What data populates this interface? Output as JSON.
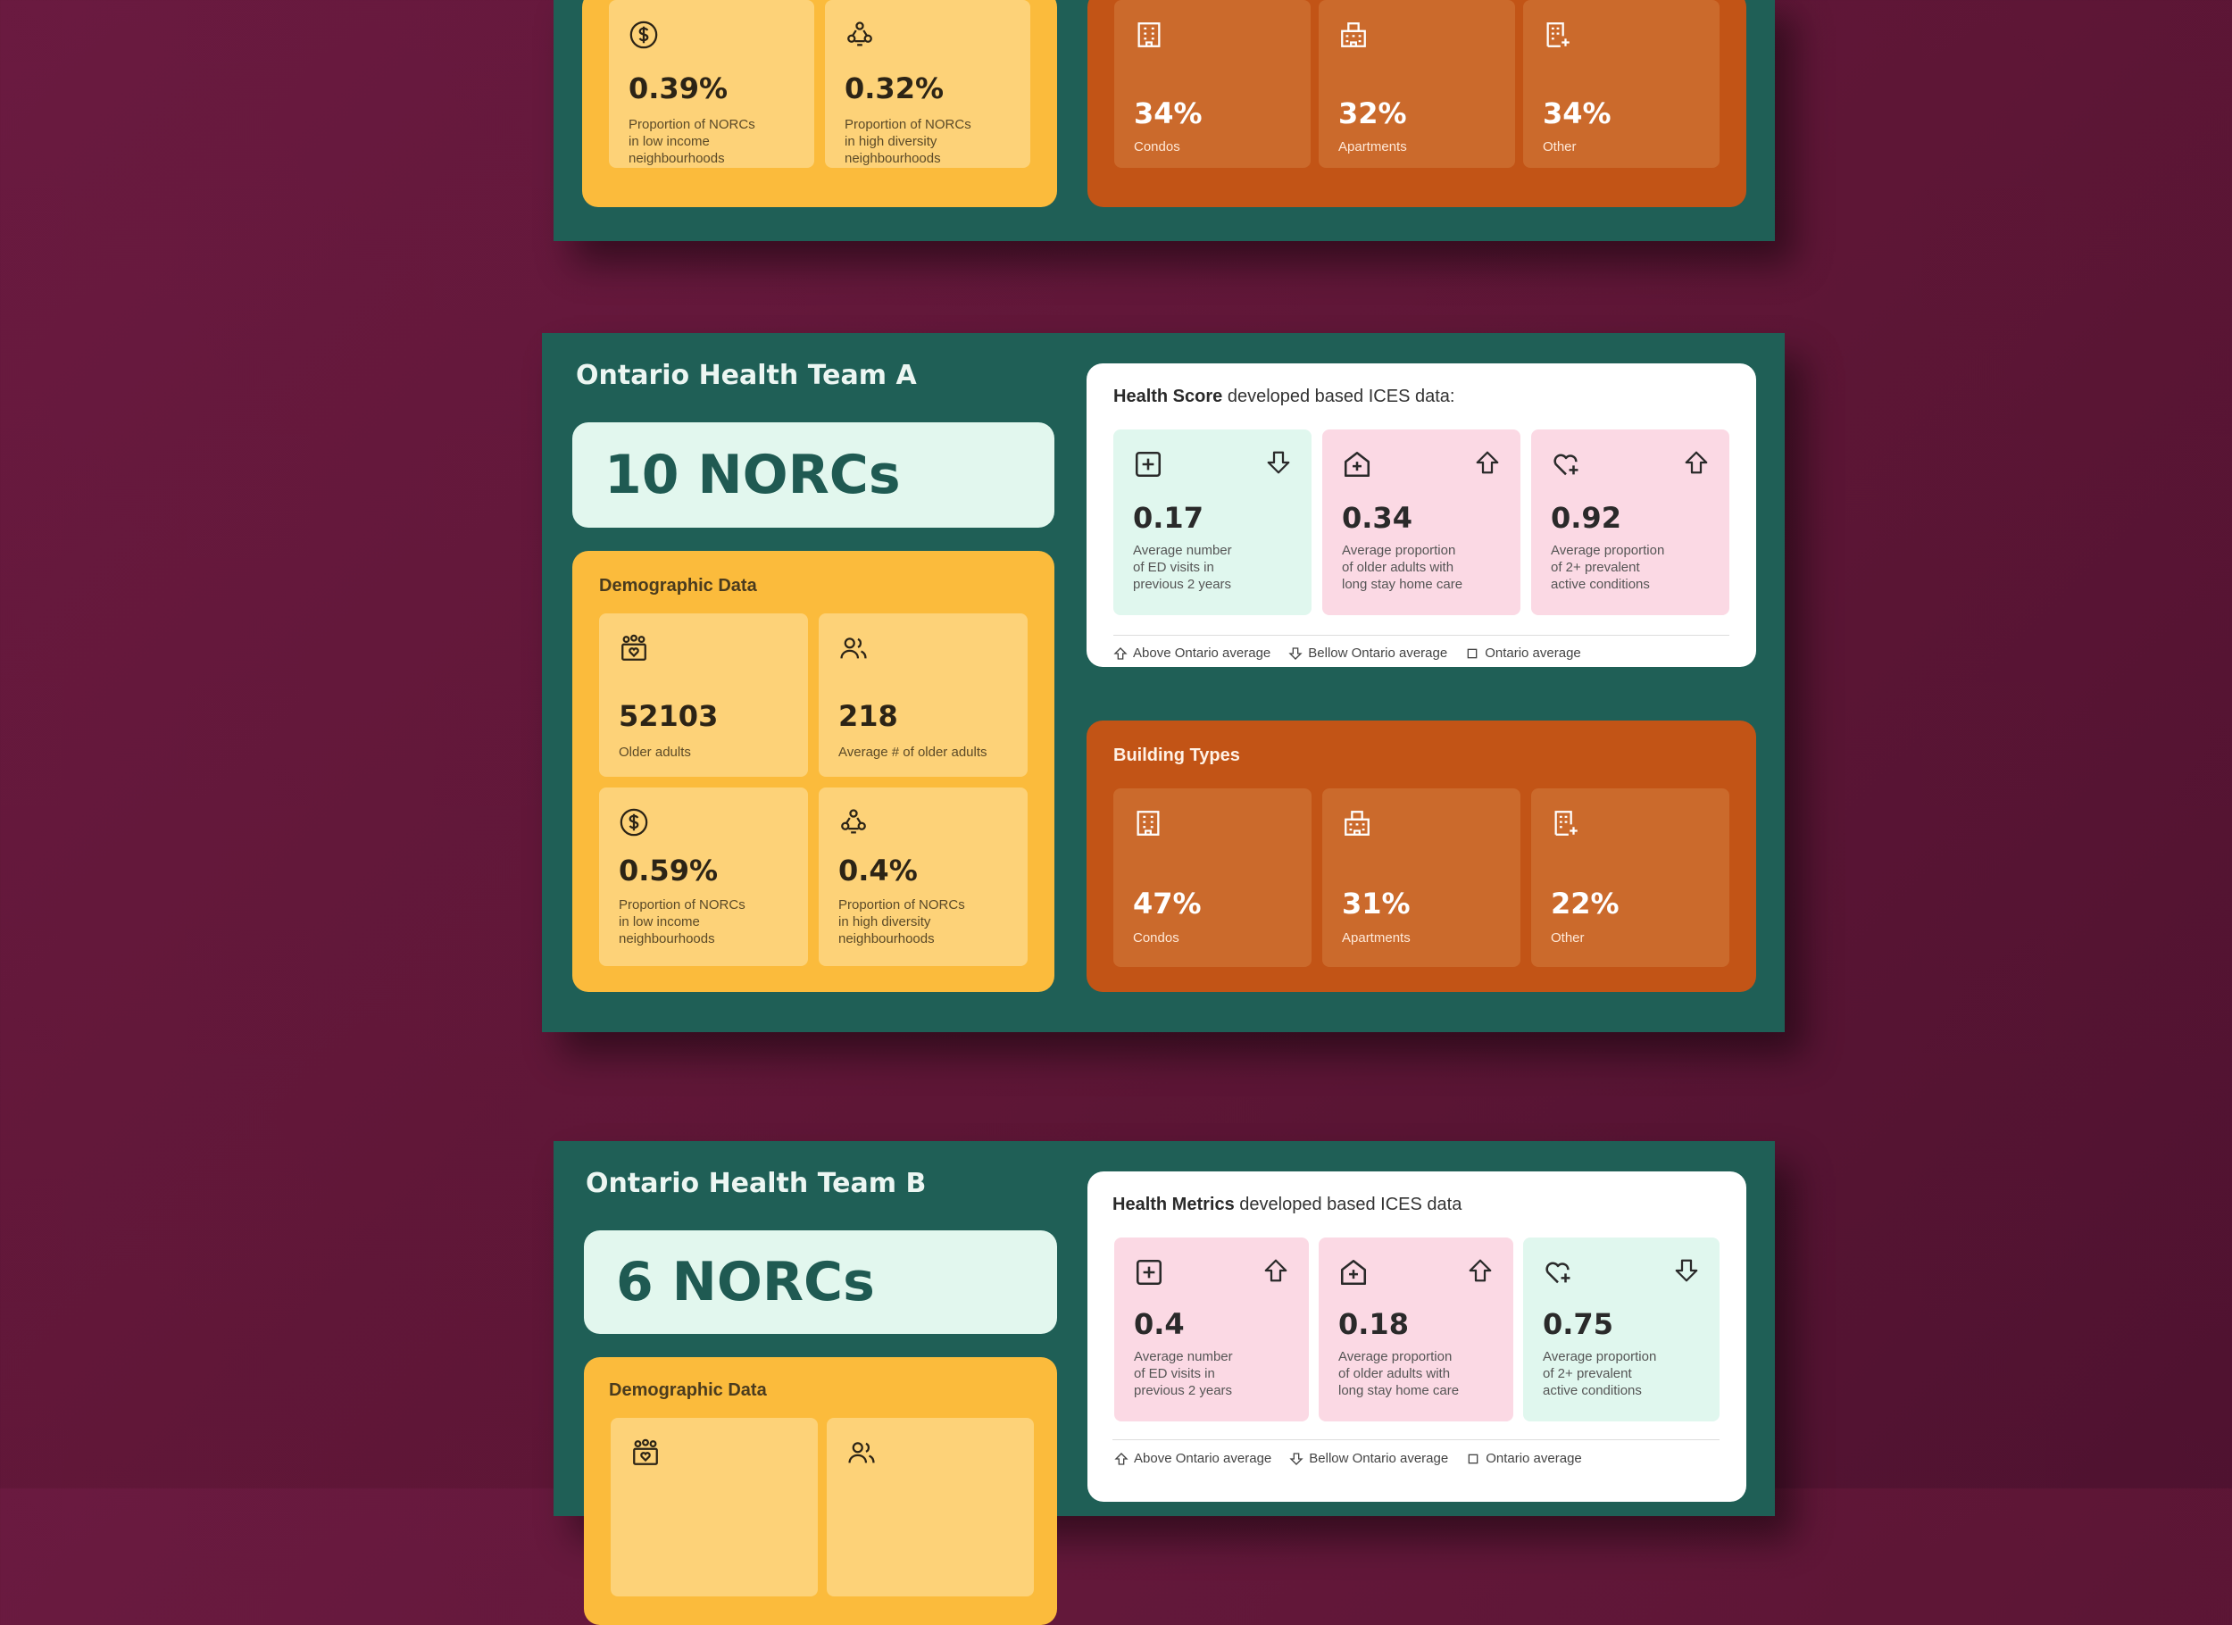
{
  "card_top": {
    "demographic_tiles": [
      {
        "value": "0.39%",
        "label": "Proportion of NORCs\nin low income\nneighbourhoods",
        "icon": "dollar-icon"
      },
      {
        "value": "0.32%",
        "label": "Proportion of NORCs\nin high diversity\nneighbourhoods",
        "icon": "diversity-icon"
      }
    ],
    "building_tiles": [
      {
        "value": "34%",
        "label": "Condos",
        "icon": "building-icon"
      },
      {
        "value": "32%",
        "label": "Apartments",
        "icon": "apartment-icon"
      },
      {
        "value": "34%",
        "label": "Other",
        "icon": "building-plus-icon"
      }
    ]
  },
  "card_a": {
    "title": "Ontario Health Team A",
    "norcs": "10 NORCs",
    "demographic_title": "Demographic Data",
    "demographic_tiles": [
      {
        "value": "52103",
        "label": "Older adults",
        "icon": "community-icon"
      },
      {
        "value": "218",
        "label": "Average # of older adults",
        "icon": "users-icon"
      },
      {
        "value": "0.59%",
        "label": "Proportion of NORCs\nin low income\nneighbourhoods",
        "icon": "dollar-icon"
      },
      {
        "value": "0.4%",
        "label": "Proportion of NORCs\nin high diversity\nneighbourhoods",
        "icon": "diversity-icon"
      }
    ],
    "health_title_bold": "Health Score",
    "health_title_rest": " developed based ICES data:",
    "health_tiles": [
      {
        "value": "0.17",
        "label": "Average number\nof ED visits in\nprevious 2 years",
        "icon": "medical-plus-icon",
        "trend": "below",
        "color": "green"
      },
      {
        "value": "0.34",
        "label": "Average proportion\nof older adults with\nlong stay home care",
        "icon": "home-care-icon",
        "trend": "above",
        "color": "pink"
      },
      {
        "value": "0.92",
        "label": "Average proportion\nof 2+ prevalent\nactive conditions",
        "icon": "heart-plus-icon",
        "trend": "above",
        "color": "pink"
      }
    ],
    "legend": {
      "above": "Above Ontario average",
      "below": "Bellow Ontario  average",
      "avg": "Ontario average"
    },
    "building_title": "Building Types",
    "building_tiles": [
      {
        "value": "47%",
        "label": "Condos",
        "icon": "building-icon"
      },
      {
        "value": "31%",
        "label": "Apartments",
        "icon": "apartment-icon"
      },
      {
        "value": "22%",
        "label": "Other",
        "icon": "building-plus-icon"
      }
    ]
  },
  "card_b": {
    "title": "Ontario Health Team B",
    "norcs": "6 NORCs",
    "demographic_title": "Demographic Data",
    "demographic_tiles": [
      {
        "icon": "community-icon"
      },
      {
        "icon": "users-icon"
      }
    ],
    "health_title_bold": "Health Metrics",
    "health_title_rest": " developed based ICES data",
    "health_tiles": [
      {
        "value": "0.4",
        "label": "Average number\nof ED visits in\nprevious 2 years",
        "icon": "medical-plus-icon",
        "trend": "above",
        "color": "pink"
      },
      {
        "value": "0.18",
        "label": "Average proportion\nof older adults with\nlong stay home care",
        "icon": "home-care-icon",
        "trend": "above",
        "color": "pink"
      },
      {
        "value": "0.75",
        "label": "Average proportion\nof 2+ prevalent\nactive conditions",
        "icon": "heart-plus-icon",
        "trend": "below",
        "color": "green"
      }
    ],
    "legend": {
      "above": "Above Ontario average",
      "below": "Bellow Ontario  average",
      "avg": "Ontario average"
    }
  }
}
